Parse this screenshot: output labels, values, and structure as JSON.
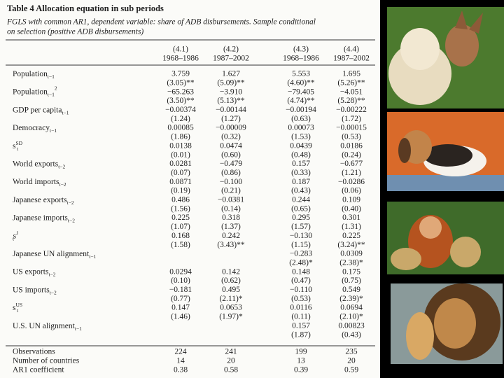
{
  "table": {
    "title": "Table 4  Allocation equation in sub periods",
    "subtitle": [
      "FGLS with common AR1, dependent variable: share of ADB disbursements. Sample conditional",
      "on selection (positive ADB disbursements)"
    ],
    "columns": [
      {
        "id": "(4.1)",
        "period": "1968–1986"
      },
      {
        "id": "(4.2)",
        "period": "1987–2002"
      },
      {
        "id": "(4.3)",
        "period": "1968–1986"
      },
      {
        "id": "(4.4)",
        "period": "1987–2002"
      }
    ],
    "rows": [
      {
        "label": {
          "text": "Population",
          "sub": "t−1"
        },
        "coef": [
          "3.759",
          "1.627",
          "5.553",
          "1.695"
        ],
        "stat": [
          "(3.05)**",
          "(5.09)**",
          "(4.60)**",
          "(5.26)**"
        ]
      },
      {
        "label": {
          "text": "Population",
          "sub": "t−1",
          "sup": "2"
        },
        "coef": [
          "−65.263",
          "−3.910",
          "−79.405",
          "−4.051"
        ],
        "stat": [
          "(3.50)**",
          "(5.13)**",
          "(4.74)**",
          "(5.28)**"
        ]
      },
      {
        "label": {
          "text": "GDP per capita",
          "sub": "t−1"
        },
        "coef": [
          "−0.00374",
          "−0.00144",
          "−0.00194",
          "−0.00222"
        ],
        "stat": [
          "(1.24)",
          "(1.27)",
          "(0.63)",
          "(1.72)"
        ]
      },
      {
        "label": {
          "text": "Democracy",
          "sub": "t−1"
        },
        "coef": [
          "0.00085",
          "−0.00009",
          "0.00073",
          "−0.00015"
        ],
        "stat": [
          "(1.86)",
          "(0.32)",
          "(1.53)",
          "(0.53)"
        ]
      },
      {
        "label": {
          "text": "s",
          "sub": "t",
          "sup": "SD"
        },
        "coef": [
          "0.0138",
          "0.0474",
          "0.0439",
          "0.0186"
        ],
        "stat": [
          "(0.01)",
          "(0.60)",
          "(0.48)",
          "(0.24)"
        ]
      },
      {
        "label": {
          "text": "World exports",
          "sub": "t−2"
        },
        "coef": [
          "0.0281",
          "−0.479",
          "0.157",
          "−0.677"
        ],
        "stat": [
          "(0.07)",
          "(0.86)",
          "(0.33)",
          "(1.21)"
        ]
      },
      {
        "label": {
          "text": "World imports",
          "sub": "t−2"
        },
        "coef": [
          "0.0871",
          "−0.100",
          "0.187",
          "−0.0286"
        ],
        "stat": [
          "(0.19)",
          "(0.21)",
          "(0.43)",
          "(0.06)"
        ]
      },
      {
        "label": {
          "text": "Japanese exports",
          "sub": "t−2"
        },
        "coef": [
          "0.486",
          "−0.0381",
          "0.244",
          "0.109"
        ],
        "stat": [
          "(1.56)",
          "(0.14)",
          "(0.65)",
          "(0.40)"
        ]
      },
      {
        "label": {
          "text": "Japanese imports",
          "sub": "t−2"
        },
        "coef": [
          "0.225",
          "0.318",
          "0.295",
          "0.301"
        ],
        "stat": [
          "(1.07)",
          "(1.37)",
          "(1.57)",
          "(1.31)"
        ]
      },
      {
        "label": {
          "text": "s",
          "sub": "t",
          "sup": "J"
        },
        "coef": [
          "0.168",
          "0.242",
          "−0.130",
          "0.225"
        ],
        "stat": [
          "(1.58)",
          "(3.43)**",
          "(1.15)",
          "(3.24)**"
        ]
      },
      {
        "label": {
          "text": "Japanese UN alignment",
          "sub": "t−1"
        },
        "coef": [
          null,
          null,
          "−0.283",
          "0.0309"
        ],
        "stat": [
          null,
          null,
          "(2.48)*",
          "(2.38)*"
        ]
      },
      {
        "label": {
          "text": "US exports",
          "sub": "t−2"
        },
        "coef": [
          "0.0294",
          "0.142",
          "0.148",
          "0.175"
        ],
        "stat": [
          "(0.10)",
          "(0.62)",
          "(0.47)",
          "(0.75)"
        ]
      },
      {
        "label": {
          "text": "US imports",
          "sub": "t−2"
        },
        "coef": [
          "−0.181",
          "0.495",
          "−0.110",
          "0.549"
        ],
        "stat": [
          "(0.77)",
          "(2.11)*",
          "(0.53)",
          "(2.39)*"
        ]
      },
      {
        "label": {
          "text": "s",
          "sub": "t",
          "sup": "US"
        },
        "coef": [
          "0.147",
          "0.0653",
          "0.0116",
          "0.0694"
        ],
        "stat": [
          "(1.46)",
          "(1.97)*",
          "(0.11)",
          "(2.10)*"
        ]
      },
      {
        "label": {
          "text": "U.S. UN alignment",
          "sub": "t−1"
        },
        "coef": [
          null,
          null,
          "0.157",
          "0.00823"
        ],
        "stat": [
          null,
          null,
          "(1.87)",
          "(0.43)"
        ]
      }
    ],
    "footer": [
      {
        "label": "Observations",
        "values": [
          "224",
          "241",
          "199",
          "235"
        ]
      },
      {
        "label": "Number of countries",
        "values": [
          "14",
          "20",
          "13",
          "20"
        ]
      },
      {
        "label": "AR1 coefficient",
        "values": [
          "0.38",
          "0.58",
          "0.39",
          "0.59"
        ]
      }
    ]
  }
}
